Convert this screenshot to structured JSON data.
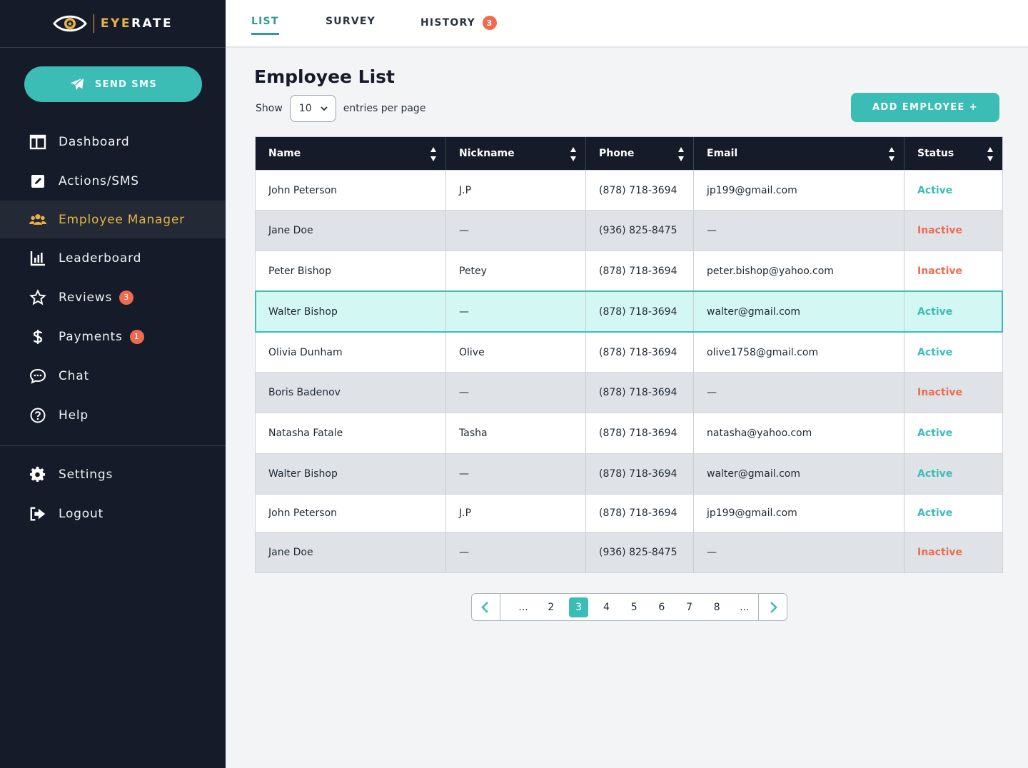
{
  "brand": {
    "name_part1": "EYE",
    "name_part2": "RATE",
    "accent": "#e8b341"
  },
  "sidebar": {
    "send_sms_label": "SEND SMS",
    "items": [
      {
        "label": "Dashboard",
        "icon": "dashboard-icon"
      },
      {
        "label": "Actions/SMS",
        "icon": "edit-icon"
      },
      {
        "label": "Employee Manager",
        "icon": "users-icon",
        "active": true
      },
      {
        "label": "Leaderboard",
        "icon": "bar-chart-icon"
      },
      {
        "label": "Reviews",
        "icon": "star-icon",
        "badge": "3"
      },
      {
        "label": "Payments",
        "icon": "dollar-icon",
        "badge": "1"
      },
      {
        "label": "Chat",
        "icon": "chat-icon"
      },
      {
        "label": "Help",
        "icon": "help-icon"
      }
    ],
    "bottom_items": [
      {
        "label": "Settings",
        "icon": "gear-icon"
      },
      {
        "label": "Logout",
        "icon": "logout-icon"
      }
    ]
  },
  "tabs": [
    {
      "label": "LIST",
      "active": true
    },
    {
      "label": "SURVEY"
    },
    {
      "label": "HISTORY",
      "badge": "3"
    }
  ],
  "page": {
    "title": "Employee List",
    "show_label": "Show",
    "entries_value": "10",
    "entries_suffix": "entries per page",
    "add_button": "ADD EMPLOYEE +"
  },
  "table": {
    "columns": [
      "Name",
      "Nickname",
      "Phone",
      "Email",
      "Status"
    ],
    "rows": [
      [
        "John Peterson",
        "J.P",
        "(878) 718-3694",
        "jp199@gmail.com",
        "Active"
      ],
      [
        "Jane Doe",
        "—",
        "(936) 825-8475",
        "—",
        "Inactive"
      ],
      [
        "Peter Bishop",
        "Petey",
        "(878) 718-3694",
        "peter.bishop@yahoo.com",
        "Inactive"
      ],
      [
        "Walter Bishop",
        "—",
        "(878) 718-3694",
        "walter@gmail.com",
        "Active"
      ],
      [
        "Olivia Dunham",
        "Olive",
        "(878) 718-3694",
        "olive1758@gmail.com",
        "Active"
      ],
      [
        "Boris Badenov",
        "—",
        "(878) 718-3694",
        "—",
        "Inactive"
      ],
      [
        "Natasha Fatale",
        "Tasha",
        "(878) 718-3694",
        "natasha@yahoo.com",
        "Active"
      ],
      [
        "Walter Bishop",
        "—",
        "(878) 718-3694",
        "walter@gmail.com",
        "Active"
      ],
      [
        "John Peterson",
        "J.P",
        "(878) 718-3694",
        "jp199@gmail.com",
        "Active"
      ],
      [
        "Jane Doe",
        "—",
        "(936) 825-8475",
        "—",
        "Inactive"
      ]
    ],
    "selected_row": 3
  },
  "pagination": {
    "items": [
      "...",
      "2",
      "3",
      "4",
      "5",
      "6",
      "7",
      "8",
      "..."
    ],
    "current": "3"
  },
  "colors": {
    "teal": "#3bbdb5",
    "inactive": "#ef6b4f",
    "sidebar_bg": "#151b28"
  }
}
